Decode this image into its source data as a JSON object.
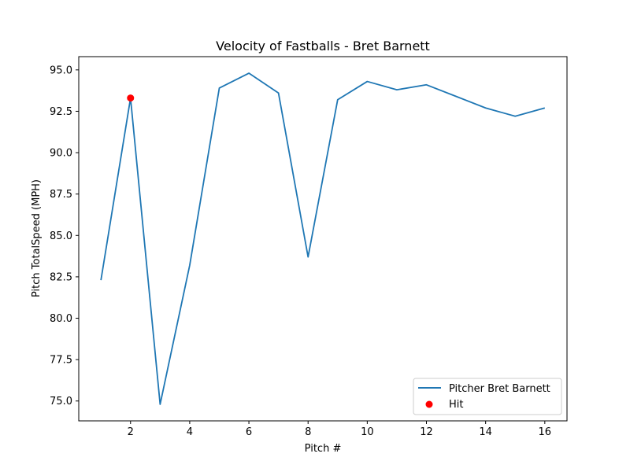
{
  "chart_data": {
    "type": "line",
    "title": "Velocity of Fastballs - Bret Barnett",
    "xlabel": "Pitch #",
    "ylabel": "Pitch TotalSpeed (MPH)",
    "xlim": [
      0.25,
      16.75
    ],
    "ylim": [
      73.8,
      95.8
    ],
    "xticks": [
      2,
      4,
      6,
      8,
      10,
      12,
      14,
      16
    ],
    "xtick_labels": [
      "2",
      "4",
      "6",
      "8",
      "10",
      "12",
      "14",
      "16"
    ],
    "yticks": [
      75.0,
      77.5,
      80.0,
      82.5,
      85.0,
      87.5,
      90.0,
      92.5,
      95.0
    ],
    "ytick_labels": [
      "75.0",
      "77.5",
      "80.0",
      "82.5",
      "85.0",
      "87.5",
      "90.0",
      "92.5",
      "95.0"
    ],
    "grid": false,
    "legend_position": "lower-right",
    "series": [
      {
        "name": "Pitcher Bret Barnett",
        "kind": "line",
        "color": "#1f77b4",
        "x": [
          1,
          2,
          3,
          4,
          5,
          6,
          7,
          8,
          9,
          10,
          11,
          12,
          13,
          14,
          15,
          16
        ],
        "y": [
          82.3,
          93.3,
          74.8,
          83.2,
          93.9,
          94.8,
          93.6,
          83.7,
          93.2,
          94.3,
          93.8,
          94.1,
          93.4,
          92.7,
          92.2,
          92.7
        ]
      },
      {
        "name": "Hit",
        "kind": "scatter",
        "color": "#ff0000",
        "x": [
          2
        ],
        "y": [
          93.3
        ]
      }
    ]
  }
}
